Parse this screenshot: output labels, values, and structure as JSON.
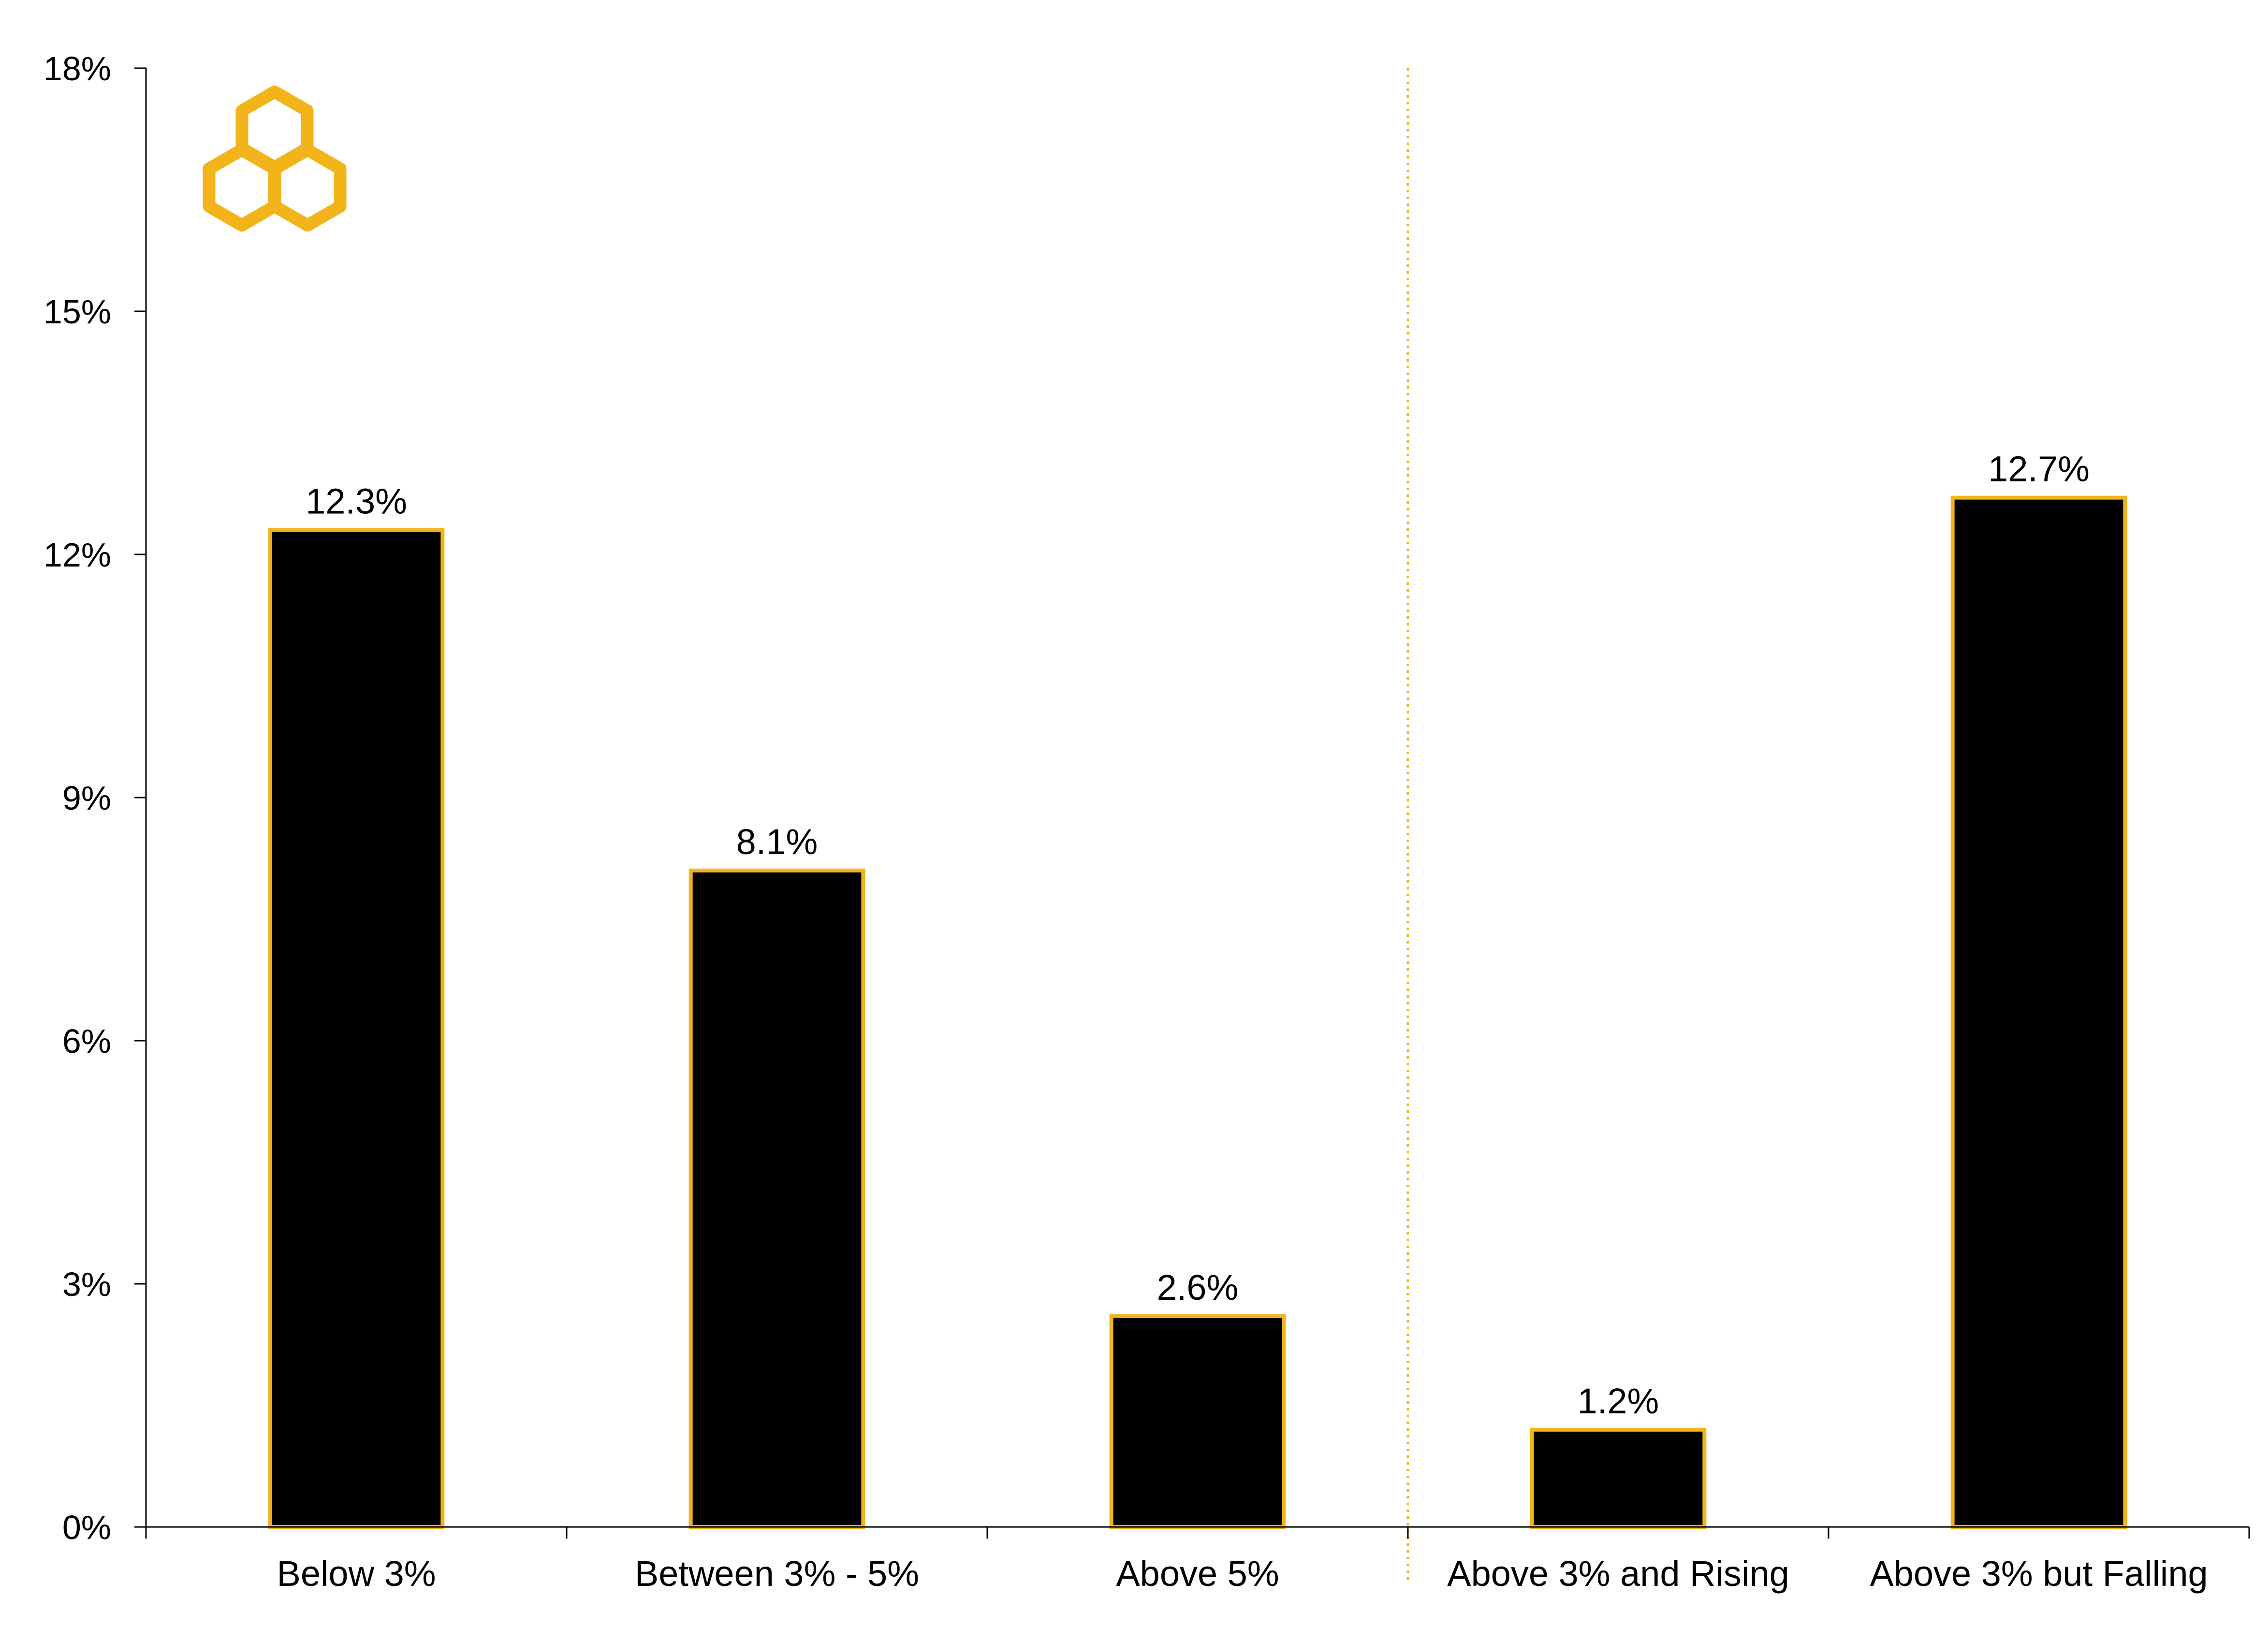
{
  "chart_data": {
    "type": "bar",
    "categories": [
      "Below 3%",
      "Between 3% - 5%",
      "Above 5%",
      "Above 3% and Rising",
      "Above 3% but Falling"
    ],
    "values": [
      12.3,
      8.1,
      2.6,
      1.2,
      12.7
    ],
    "data_labels": [
      "12.3%",
      "8.1%",
      "2.6%",
      "1.2%",
      "12.7%"
    ],
    "y_ticks": [
      0,
      3,
      6,
      9,
      12,
      15,
      18
    ],
    "y_tick_labels": [
      "0%",
      "3%",
      "6%",
      "9%",
      "12%",
      "15%",
      "18%"
    ],
    "ylim": [
      0,
      18
    ],
    "grid": false,
    "legend": "none",
    "divider_after_category": 2,
    "colors": {
      "bar_fill": "#000000",
      "bar_outline": "#F2B31B",
      "divider": "#F2B31B",
      "logo": "#F2B31B",
      "axis": "#000000"
    },
    "logo_icon": "interlocking-hexagons-logo"
  }
}
